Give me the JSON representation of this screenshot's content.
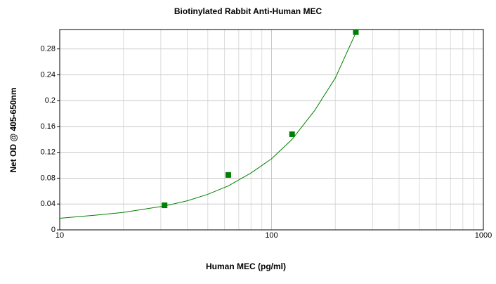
{
  "chart_data": {
    "type": "scatter",
    "title": "Biotinylated Rabbit Anti-Human MEC",
    "x_label": "Human MEC (pg/ml)",
    "y_label": "Net OD @ 405-650nm",
    "x_log": true,
    "xlim": [
      10,
      1000
    ],
    "ylim": [
      0,
      0.31
    ],
    "xticks": [
      10,
      100,
      1000
    ],
    "yticks": [
      0,
      0.04,
      0.08,
      0.12,
      0.16,
      0.2,
      0.24,
      0.28
    ],
    "xgrid": [
      20,
      30,
      40,
      50,
      60,
      70,
      80,
      90,
      200,
      300,
      400,
      500,
      600,
      700,
      800,
      900
    ],
    "grid": true,
    "series": [
      {
        "color": "#008000",
        "x": [
          31.25,
          62.5,
          125,
          250
        ],
        "values": [
          0.038,
          0.085,
          0.148,
          0.306
        ]
      }
    ],
    "fit": {
      "color": "#008000",
      "x": [
        10,
        15,
        20,
        31.25,
        40,
        50,
        62.5,
        80,
        100,
        125,
        160,
        200,
        250
      ],
      "values": [
        0.018,
        0.023,
        0.027,
        0.037,
        0.045,
        0.055,
        0.068,
        0.088,
        0.11,
        0.14,
        0.185,
        0.235,
        0.305
      ]
    }
  }
}
